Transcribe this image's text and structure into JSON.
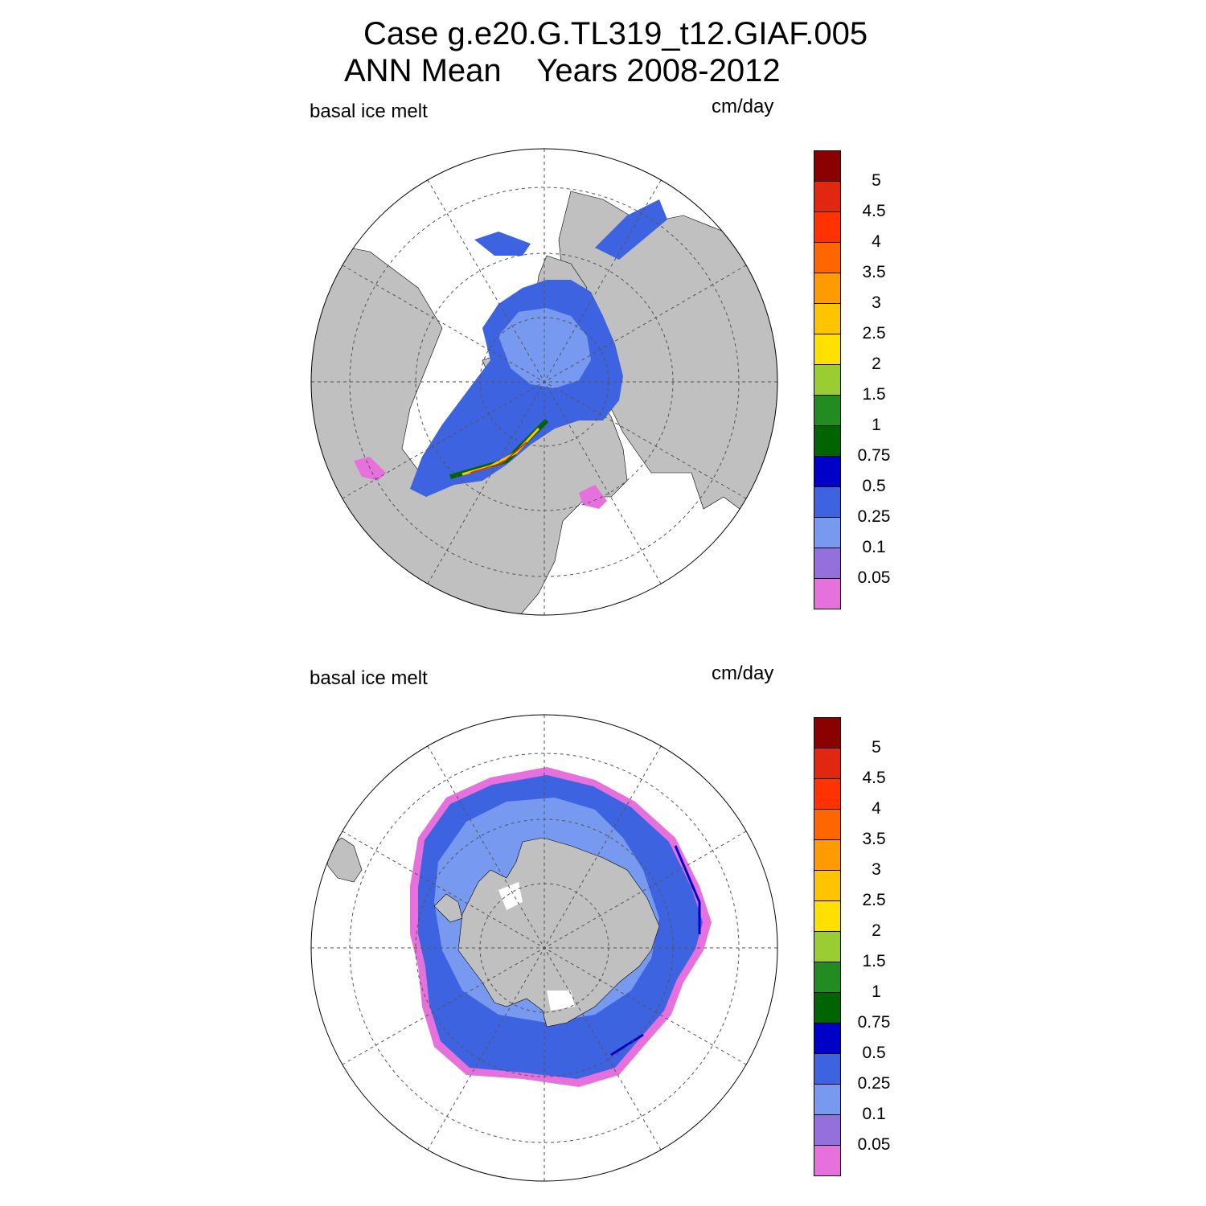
{
  "title": {
    "line1": "Case g.e20.G.TL319_t12.GIAF.005",
    "line2": "ANN Mean    Years 2008-2012"
  },
  "panels": [
    {
      "id": "north",
      "left_label": "basal ice melt",
      "right_label": "cm/day"
    },
    {
      "id": "south",
      "left_label": "basal ice melt",
      "right_label": "cm/day"
    }
  ],
  "colorbar": {
    "colors": [
      "#e670dc",
      "#9370db",
      "#7799f0",
      "#3e63e0",
      "#0000c8",
      "#006400",
      "#228b22",
      "#9acd32",
      "#ffe000",
      "#ffc400",
      "#ff9a00",
      "#ff6600",
      "#ff3200",
      "#e02810",
      "#8b0000"
    ],
    "tick_labels": [
      "0.05",
      "0.1",
      "0.25",
      "0.5",
      "0.75",
      "1",
      "1.5",
      "2",
      "2.5",
      "3",
      "3.5",
      "4",
      "4.5",
      "5"
    ]
  },
  "map_colors": {
    "land": "#c0c0c0",
    "ocean": "#ffffff",
    "grid": "#555555"
  }
}
